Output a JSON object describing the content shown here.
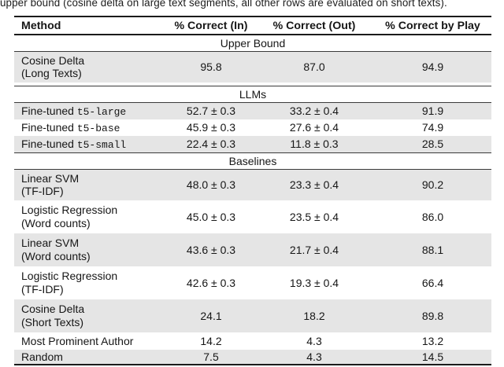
{
  "caption": "upper bound (cosine delta on large text segments, all other rows are evaluated on short texts).",
  "colors": {
    "row_shade": "#e5e5e5",
    "rule": "#1b1b1b"
  },
  "table": {
    "header": {
      "method": "Method",
      "in": "% Correct (In)",
      "out": "% Correct (Out)",
      "play": "% Correct by Play"
    },
    "sections": {
      "upper_bound": "Upper Bound",
      "llms": "LLMs",
      "baselines": "Baselines"
    },
    "rows": [
      {
        "m1": "Cosine Delta",
        "m2": "(Long Texts)",
        "in": "95.8",
        "out": "87.0",
        "play": "94.9"
      },
      {
        "prefix": "Fine-tuned ",
        "code": "t5-large",
        "in": "52.7 ± 0.3",
        "out": "33.2 ± 0.4",
        "play": "91.9"
      },
      {
        "prefix": "Fine-tuned ",
        "code": "t5-base",
        "in": "45.9 ± 0.3",
        "out": "27.6 ± 0.4",
        "play": "74.9"
      },
      {
        "prefix": "Fine-tuned ",
        "code": "t5-small",
        "in": "22.4 ± 0.3",
        "out": "11.8 ± 0.3",
        "play": "28.5"
      },
      {
        "m1": "Linear SVM",
        "m2": "(TF-IDF)",
        "in": "48.0 ± 0.3",
        "out": "23.3 ± 0.4",
        "play": "90.2"
      },
      {
        "m1": "Logistic Regression",
        "m2": "(Word counts)",
        "in": "45.0 ± 0.3",
        "out": "23.5 ± 0.4",
        "play": "86.0"
      },
      {
        "m1": "Linear SVM",
        "m2": "(Word counts)",
        "in": "43.6 ± 0.3",
        "out": "21.7 ± 0.4",
        "play": "88.1"
      },
      {
        "m1": "Logistic Regression",
        "m2": "(TF-IDF)",
        "in": "42.6 ± 0.3",
        "out": "19.3 ± 0.4",
        "play": "66.4"
      },
      {
        "m1": "Cosine Delta",
        "m2": "(Short Texts)",
        "in": "24.1",
        "out": "18.2",
        "play": "89.8"
      },
      {
        "m1": "Most Prominent Author",
        "in": "14.2",
        "out": "4.3",
        "play": "13.2"
      },
      {
        "m1": "Random",
        "in": "7.5",
        "out": "4.3",
        "play": "14.5"
      }
    ]
  }
}
